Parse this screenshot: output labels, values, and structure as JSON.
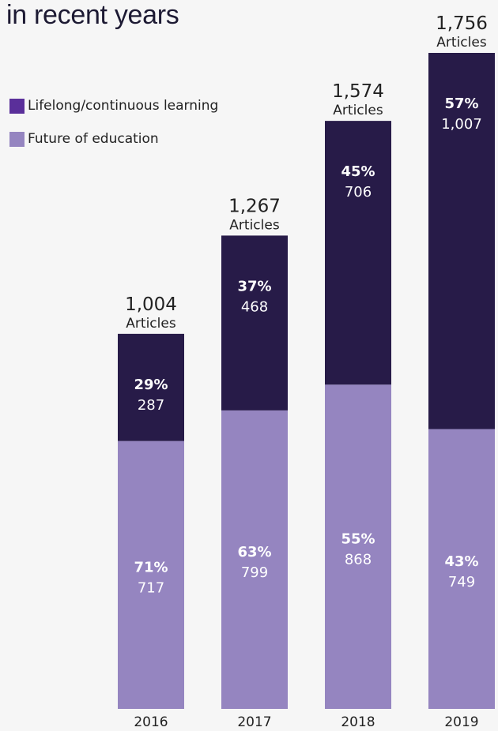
{
  "title": {
    "line2": "in recent years"
  },
  "legend": [
    {
      "label": "Lifelong/continuous learning",
      "color": "#5a2f9a"
    },
    {
      "label": "Future of education",
      "color": "#9585c0"
    }
  ],
  "colors": {
    "lifelong_bar": "#271b48",
    "future_bar": "#9585c0",
    "background": "#f6f6f6"
  },
  "chart_data": {
    "type": "bar",
    "stacked": true,
    "categories": [
      "2016",
      "2017",
      "2018",
      "2019"
    ],
    "totals": [
      "1,004",
      "1,267",
      "1,574",
      "1,756"
    ],
    "total_values": [
      1004,
      1267,
      1574,
      1756
    ],
    "total_unit": "Articles",
    "series": [
      {
        "name": "Future of education",
        "values": [
          717,
          799,
          868,
          749
        ],
        "labels": [
          "717",
          "799",
          "868",
          "749"
        ],
        "percents": [
          "71%",
          "63%",
          "55%",
          "43%"
        ]
      },
      {
        "name": "Lifelong/continuous learning",
        "values": [
          287,
          468,
          706,
          1007
        ],
        "labels": [
          "287",
          "468",
          "706",
          "1,007"
        ],
        "percents": [
          "29%",
          "37%",
          "45%",
          "57%"
        ]
      }
    ],
    "legend_position": "top-left",
    "grid": false,
    "ylim": [
      0,
      1756
    ]
  }
}
